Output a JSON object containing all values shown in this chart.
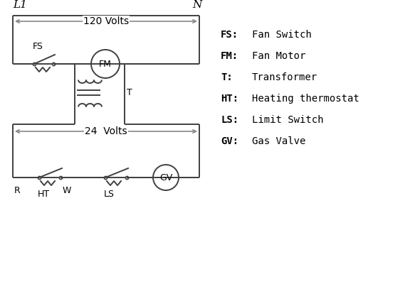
{
  "bg_color": "#ffffff",
  "line_color": "#404040",
  "arrow_color": "#888888",
  "text_color": "#000000",
  "legend": [
    [
      "FS:",
      "Fan Switch"
    ],
    [
      "FM:",
      "Fan Motor"
    ],
    [
      "T:",
      "Transformer"
    ],
    [
      "HT:",
      "Heating thermostat"
    ],
    [
      "LS:",
      "Limit Switch"
    ],
    [
      "GV:",
      "Gas Valve"
    ]
  ],
  "L1_label": "L1",
  "N_label": "N",
  "v120_label": "120 Volts",
  "v24_label": "24  Volts"
}
